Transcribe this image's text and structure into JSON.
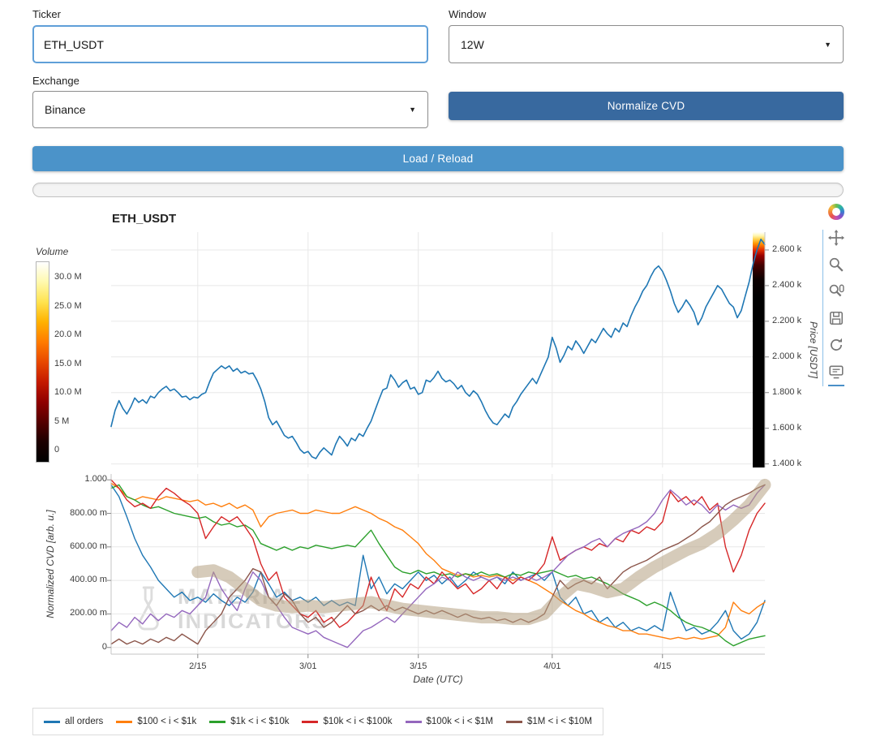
{
  "form": {
    "ticker_label": "Ticker",
    "ticker_value": "ETH_USDT",
    "window_label": "Window",
    "window_value": "12W",
    "exchange_label": "Exchange",
    "exchange_value": "Binance",
    "normalize_button": "Normalize CVD",
    "load_button": "Load / Reload",
    "select_caret": "▼"
  },
  "chart": {
    "title": "ETH_USDT",
    "watermark": [
      "MATERIAL",
      "INDICATORS"
    ],
    "colorbar": {
      "label": "Volume",
      "ticks": [
        "30.0 M",
        "25.0 M",
        "20.0 M",
        "15.0 M",
        "10.0 M",
        "5 M",
        "0"
      ],
      "gradient": [
        "#000000",
        "#1c0000",
        "#550000",
        "#8f0000",
        "#c41a00",
        "#e84800",
        "#ff7b00",
        "#ffb100",
        "#ffe34f",
        "#fff9ad",
        "#ffffff"
      ]
    }
  },
  "toolbar": {
    "tools": [
      "bokeh-logo",
      "pan",
      "box-zoom",
      "wheel-zoom",
      "save",
      "reset",
      "hover"
    ]
  },
  "legend": [
    {
      "label": "all orders",
      "color": "#1f77b4"
    },
    {
      "label": "$100 < i < $1k",
      "color": "#ff7f0e"
    },
    {
      "label": "$1k < i < $10k",
      "color": "#2ca02c"
    },
    {
      "label": "$10k < i < $100k",
      "color": "#d62728"
    },
    {
      "label": "$100k < i < $1M",
      "color": "#9467bd"
    },
    {
      "label": "$1M < i < $10M",
      "color": "#8c564b"
    }
  ],
  "chart_data": [
    {
      "type": "line",
      "title": "ETH_USDT",
      "ylabel": "Price [USDT]",
      "x_range": [
        0,
        83
      ],
      "y_range": [
        1380,
        2700
      ],
      "x_grid_days": [
        11,
        25,
        39,
        56,
        70
      ],
      "y_ticks": [
        {
          "v": 2600,
          "label": "2.600 k"
        },
        {
          "v": 2400,
          "label": "2.400 k"
        },
        {
          "v": 2200,
          "label": "2.200 k"
        },
        {
          "v": 2000,
          "label": "2.000 k"
        },
        {
          "v": 1800,
          "label": "1.800 k"
        },
        {
          "v": 1600,
          "label": "1.600 k"
        },
        {
          "v": 1400,
          "label": "1.400 k"
        }
      ],
      "heat_strip": {
        "x_width": 15,
        "stops": [
          {
            "o": 0,
            "c": "#ffffff"
          },
          {
            "o": 0.015,
            "c": "#fff7b0"
          },
          {
            "o": 0.03,
            "c": "#ffd24d"
          },
          {
            "o": 0.05,
            "c": "#ff9100"
          },
          {
            "o": 0.075,
            "c": "#e63000"
          },
          {
            "o": 0.1,
            "c": "#990000"
          },
          {
            "o": 0.14,
            "c": "#440000"
          },
          {
            "o": 0.2,
            "c": "#0c0000"
          },
          {
            "o": 0.28,
            "c": "#000000"
          },
          {
            "o": 1,
            "c": "#000000"
          }
        ]
      },
      "series": [
        {
          "name": "price",
          "color": "#1f77b4",
          "lw": 1.6,
          "x0": 0,
          "dx": 0.5,
          "values": [
            1610,
            1700,
            1755,
            1710,
            1680,
            1720,
            1770,
            1745,
            1760,
            1740,
            1780,
            1770,
            1800,
            1820,
            1835,
            1810,
            1820,
            1800,
            1775,
            1780,
            1760,
            1775,
            1770,
            1790,
            1800,
            1860,
            1910,
            1930,
            1950,
            1935,
            1950,
            1920,
            1935,
            1910,
            1920,
            1905,
            1910,
            1870,
            1820,
            1750,
            1660,
            1620,
            1640,
            1600,
            1560,
            1545,
            1555,
            1520,
            1480,
            1460,
            1470,
            1440,
            1430,
            1465,
            1490,
            1470,
            1450,
            1510,
            1555,
            1530,
            1500,
            1545,
            1530,
            1570,
            1555,
            1600,
            1640,
            1700,
            1760,
            1815,
            1825,
            1900,
            1870,
            1830,
            1855,
            1870,
            1820,
            1830,
            1790,
            1800,
            1870,
            1860,
            1885,
            1920,
            1880,
            1860,
            1870,
            1850,
            1820,
            1840,
            1800,
            1780,
            1810,
            1790,
            1750,
            1700,
            1660,
            1630,
            1620,
            1650,
            1680,
            1660,
            1720,
            1750,
            1790,
            1820,
            1850,
            1880,
            1850,
            1900,
            1950,
            2000,
            2110,
            2050,
            1970,
            2010,
            2060,
            2040,
            2090,
            2060,
            2020,
            2060,
            2100,
            2080,
            2120,
            2160,
            2130,
            2110,
            2160,
            2140,
            2190,
            2170,
            2230,
            2280,
            2320,
            2370,
            2400,
            2450,
            2490,
            2510,
            2480,
            2430,
            2370,
            2300,
            2250,
            2280,
            2320,
            2290,
            2250,
            2180,
            2220,
            2280,
            2320,
            2360,
            2400,
            2380,
            2340,
            2300,
            2280,
            2220,
            2260,
            2340,
            2420,
            2520,
            2600,
            2660,
            2630
          ]
        }
      ]
    },
    {
      "type": "line",
      "ylabel": "Normalized CVD [arb. u.]",
      "xlabel": "Date (UTC)",
      "x_range": [
        0,
        83
      ],
      "y_range": [
        -0.04,
        1.035
      ],
      "x_ticks": [
        {
          "day": 11,
          "label": "2/15"
        },
        {
          "day": 25,
          "label": "3/01"
        },
        {
          "day": 39,
          "label": "3/15"
        },
        {
          "day": 56,
          "label": "4/01"
        },
        {
          "day": 70,
          "label": "4/15"
        }
      ],
      "y_ticks": [
        {
          "v": 1.0,
          "label": "1.000"
        },
        {
          "v": 0.8,
          "label": "800.00 m"
        },
        {
          "v": 0.6,
          "label": "600.00 m"
        },
        {
          "v": 0.4,
          "label": "400.00 m"
        },
        {
          "v": 0.2,
          "label": "200.00 m"
        },
        {
          "v": 0,
          "label": "0"
        }
      ],
      "series": [
        {
          "name": "all-orders",
          "color": "#1f77b4",
          "x0": 0,
          "dx": 1,
          "values": [
            0.97,
            0.9,
            0.78,
            0.65,
            0.55,
            0.48,
            0.4,
            0.35,
            0.3,
            0.33,
            0.28,
            0.3,
            0.27,
            0.32,
            0.28,
            0.25,
            0.3,
            0.27,
            0.33,
            0.45,
            0.38,
            0.3,
            0.33,
            0.28,
            0.3,
            0.27,
            0.3,
            0.25,
            0.28,
            0.25,
            0.27,
            0.25,
            0.55,
            0.35,
            0.42,
            0.32,
            0.38,
            0.35,
            0.4,
            0.45,
            0.4,
            0.43,
            0.38,
            0.42,
            0.36,
            0.4,
            0.45,
            0.42,
            0.4,
            0.42,
            0.38,
            0.45,
            0.4,
            0.42,
            0.44,
            0.4,
            0.45,
            0.3,
            0.25,
            0.3,
            0.2,
            0.22,
            0.15,
            0.18,
            0.12,
            0.15,
            0.1,
            0.12,
            0.1,
            0.13,
            0.1,
            0.33,
            0.2,
            0.1,
            0.12,
            0.08,
            0.1,
            0.15,
            0.22,
            0.1,
            0.05,
            0.08,
            0.15,
            0.28
          ]
        },
        {
          "name": "100-1k",
          "color": "#ff7f0e",
          "x0": 0,
          "dx": 1,
          "values": [
            0.98,
            0.95,
            0.9,
            0.88,
            0.9,
            0.89,
            0.88,
            0.9,
            0.89,
            0.88,
            0.87,
            0.88,
            0.85,
            0.86,
            0.84,
            0.86,
            0.83,
            0.85,
            0.82,
            0.72,
            0.78,
            0.8,
            0.81,
            0.82,
            0.8,
            0.8,
            0.82,
            0.81,
            0.8,
            0.8,
            0.82,
            0.84,
            0.82,
            0.8,
            0.77,
            0.75,
            0.72,
            0.7,
            0.66,
            0.62,
            0.56,
            0.52,
            0.47,
            0.45,
            0.43,
            0.44,
            0.42,
            0.43,
            0.42,
            0.43,
            0.42,
            0.4,
            0.42,
            0.4,
            0.38,
            0.35,
            0.32,
            0.28,
            0.25,
            0.22,
            0.2,
            0.17,
            0.15,
            0.13,
            0.12,
            0.1,
            0.1,
            0.08,
            0.08,
            0.07,
            0.06,
            0.05,
            0.06,
            0.05,
            0.06,
            0.05,
            0.06,
            0.07,
            0.12,
            0.27,
            0.22,
            0.2,
            0.24,
            0.27
          ]
        },
        {
          "name": "1k-10k",
          "color": "#2ca02c",
          "x0": 0,
          "dx": 1,
          "values": [
            0.95,
            0.97,
            0.9,
            0.88,
            0.85,
            0.83,
            0.84,
            0.82,
            0.8,
            0.79,
            0.78,
            0.77,
            0.78,
            0.75,
            0.73,
            0.74,
            0.72,
            0.73,
            0.7,
            0.62,
            0.6,
            0.58,
            0.6,
            0.58,
            0.6,
            0.59,
            0.61,
            0.6,
            0.59,
            0.6,
            0.61,
            0.6,
            0.65,
            0.7,
            0.62,
            0.55,
            0.48,
            0.45,
            0.44,
            0.46,
            0.44,
            0.45,
            0.43,
            0.44,
            0.42,
            0.44,
            0.43,
            0.45,
            0.43,
            0.44,
            0.42,
            0.44,
            0.43,
            0.45,
            0.44,
            0.45,
            0.46,
            0.44,
            0.42,
            0.43,
            0.41,
            0.42,
            0.4,
            0.38,
            0.35,
            0.32,
            0.3,
            0.28,
            0.25,
            0.27,
            0.25,
            0.22,
            0.18,
            0.15,
            0.13,
            0.12,
            0.1,
            0.08,
            0.04,
            0.01,
            0.03,
            0.05,
            0.06,
            0.07
          ]
        },
        {
          "name": "10k-100k",
          "color": "#d62728",
          "x0": 0,
          "dx": 1,
          "values": [
            1.0,
            0.95,
            0.88,
            0.84,
            0.86,
            0.83,
            0.9,
            0.95,
            0.92,
            0.88,
            0.85,
            0.8,
            0.65,
            0.72,
            0.78,
            0.75,
            0.78,
            0.72,
            0.65,
            0.5,
            0.4,
            0.45,
            0.3,
            0.25,
            0.2,
            0.18,
            0.22,
            0.15,
            0.18,
            0.12,
            0.15,
            0.2,
            0.25,
            0.42,
            0.3,
            0.22,
            0.35,
            0.3,
            0.38,
            0.35,
            0.42,
            0.38,
            0.45,
            0.4,
            0.35,
            0.38,
            0.32,
            0.35,
            0.4,
            0.35,
            0.42,
            0.38,
            0.42,
            0.4,
            0.44,
            0.5,
            0.66,
            0.52,
            0.55,
            0.58,
            0.6,
            0.58,
            0.62,
            0.6,
            0.65,
            0.63,
            0.7,
            0.68,
            0.72,
            0.7,
            0.75,
            0.93,
            0.87,
            0.9,
            0.85,
            0.9,
            0.82,
            0.86,
            0.6,
            0.45,
            0.55,
            0.7,
            0.8,
            0.86
          ]
        },
        {
          "name": "100k-1M",
          "color": "#9467bd",
          "x0": 0,
          "dx": 1,
          "values": [
            0.1,
            0.15,
            0.12,
            0.18,
            0.14,
            0.2,
            0.16,
            0.2,
            0.18,
            0.22,
            0.2,
            0.25,
            0.3,
            0.45,
            0.35,
            0.28,
            0.22,
            0.35,
            0.45,
            0.4,
            0.3,
            0.25,
            0.18,
            0.12,
            0.1,
            0.08,
            0.1,
            0.06,
            0.04,
            0.02,
            0.0,
            0.05,
            0.1,
            0.12,
            0.15,
            0.18,
            0.15,
            0.2,
            0.25,
            0.3,
            0.35,
            0.38,
            0.42,
            0.4,
            0.45,
            0.42,
            0.4,
            0.42,
            0.4,
            0.42,
            0.4,
            0.42,
            0.4,
            0.42,
            0.4,
            0.42,
            0.45,
            0.5,
            0.55,
            0.58,
            0.6,
            0.63,
            0.65,
            0.6,
            0.65,
            0.68,
            0.7,
            0.72,
            0.75,
            0.8,
            0.88,
            0.94,
            0.9,
            0.85,
            0.88,
            0.85,
            0.8,
            0.85,
            0.82,
            0.85,
            0.83,
            0.85,
            0.92,
            0.97
          ]
        },
        {
          "name": "1M-10M",
          "color": "#8c564b",
          "x0": 0,
          "dx": 1,
          "values": [
            0.02,
            0.05,
            0.02,
            0.04,
            0.02,
            0.05,
            0.03,
            0.06,
            0.04,
            0.08,
            0.05,
            0.02,
            0.1,
            0.15,
            0.2,
            0.3,
            0.35,
            0.4,
            0.47,
            0.45,
            0.3,
            0.25,
            0.32,
            0.28,
            0.2,
            0.15,
            0.18,
            0.12,
            0.15,
            0.2,
            0.25,
            0.2,
            0.22,
            0.25,
            0.22,
            0.25,
            0.22,
            0.24,
            0.22,
            0.2,
            0.22,
            0.2,
            0.22,
            0.2,
            0.18,
            0.2,
            0.18,
            0.17,
            0.18,
            0.16,
            0.17,
            0.15,
            0.17,
            0.15,
            0.17,
            0.2,
            0.3,
            0.4,
            0.35,
            0.38,
            0.4,
            0.38,
            0.42,
            0.35,
            0.4,
            0.45,
            0.48,
            0.5,
            0.52,
            0.55,
            0.58,
            0.6,
            0.62,
            0.65,
            0.68,
            0.72,
            0.75,
            0.8,
            0.85,
            0.88,
            0.9,
            0.92,
            0.95,
            0.97
          ]
        },
        {
          "name": "trend-band",
          "color": "#b4a182",
          "lw": 15,
          "opacity": 0.55,
          "x0": 11,
          "dx": 2,
          "values": [
            0.45,
            0.46,
            0.42,
            0.35,
            0.28,
            0.25,
            0.24,
            0.25,
            0.24,
            0.25,
            0.26,
            0.27,
            0.25,
            0.23,
            0.22,
            0.21,
            0.2,
            0.19,
            0.18,
            0.18,
            0.17,
            0.17,
            0.2,
            0.3,
            0.38,
            0.36,
            0.33,
            0.35,
            0.42,
            0.48,
            0.53,
            0.58,
            0.62,
            0.68,
            0.76,
            0.85,
            0.97
          ]
        }
      ]
    }
  ]
}
